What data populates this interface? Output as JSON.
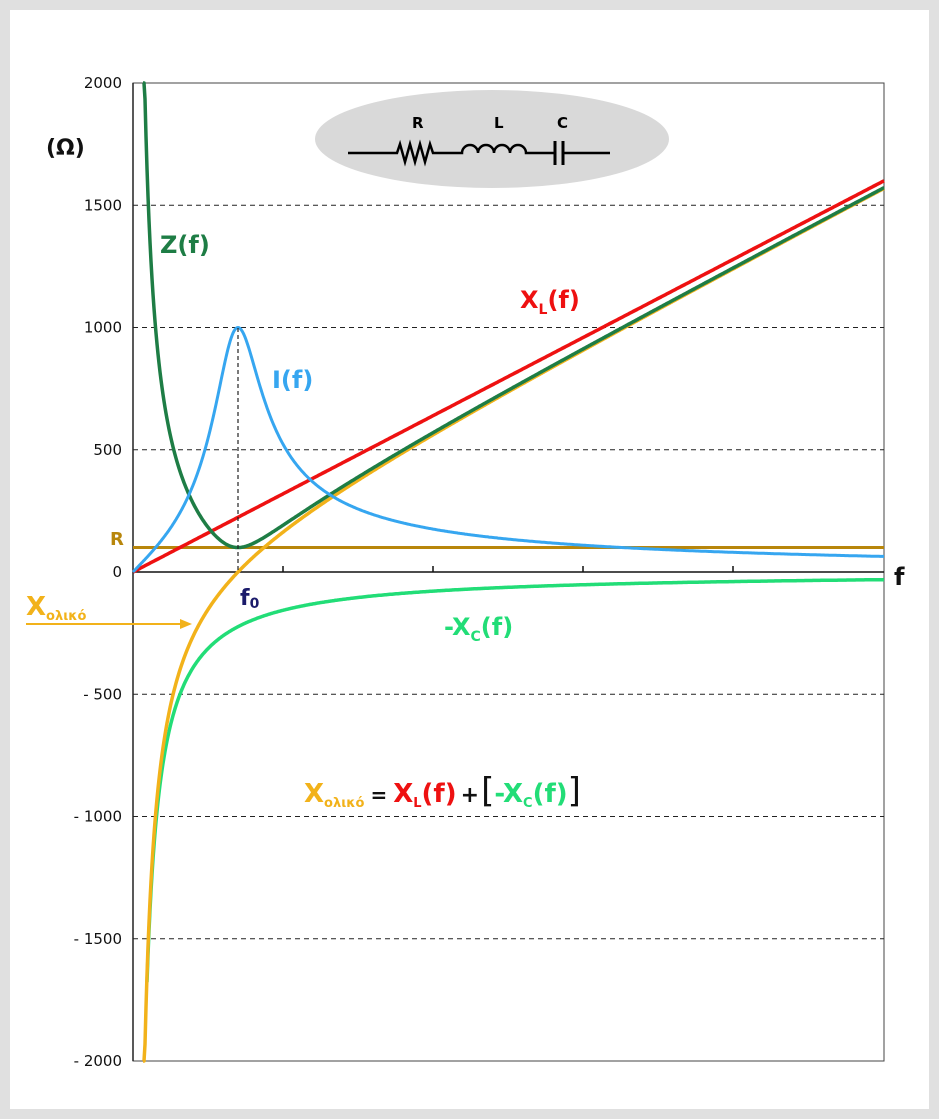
{
  "chart_data": {
    "type": "line",
    "ylabel": "(Ω)",
    "xlabel": "f",
    "ylim": [
      -2000,
      2000
    ],
    "yticks": [
      {
        "value": 2000,
        "label": "2000"
      },
      {
        "value": 1500,
        "label": "1500"
      },
      {
        "value": 1000,
        "label": "1000"
      },
      {
        "value": 500,
        "label": "500"
      },
      {
        "value": 0,
        "label": "0"
      },
      {
        "value": -500,
        "label": "- 500"
      },
      {
        "value": -1000,
        "label": "- 1000"
      },
      {
        "value": -1500,
        "label": "- 1500"
      },
      {
        "value": -2000,
        "label": "- 2000"
      }
    ],
    "grid": true,
    "circuit": {
      "r": "R",
      "l": "L",
      "c": "C"
    },
    "r_label": "R",
    "f0_label": "f",
    "f0_sub": "0",
    "series": [
      {
        "name": "Z(f)",
        "color": "#1e7d45"
      },
      {
        "name": "I(f)",
        "color": "#36a6f0"
      },
      {
        "name": "X",
        "sub": "L",
        "suffix": "(f)",
        "color": "#ee1111"
      },
      {
        "name": "-X",
        "sub": "C",
        "suffix": "(f)",
        "color": "#22dd77"
      },
      {
        "name": "X",
        "sub": "ολικό",
        "color": "#f2b21a"
      },
      {
        "name": "R",
        "color": "#b8860b"
      }
    ],
    "formula": {
      "lhs": "X",
      "lhs_sub": "ολικό",
      "eq": "=",
      "xl": "X",
      "xl_sub": "L",
      "xl_suffix": "(f)",
      "plus": "+",
      "bracket_open": "[",
      "xc": "-X",
      "xc_sub": "C",
      "xc_suffix": "(f)",
      "bracket_close": "]"
    }
  }
}
